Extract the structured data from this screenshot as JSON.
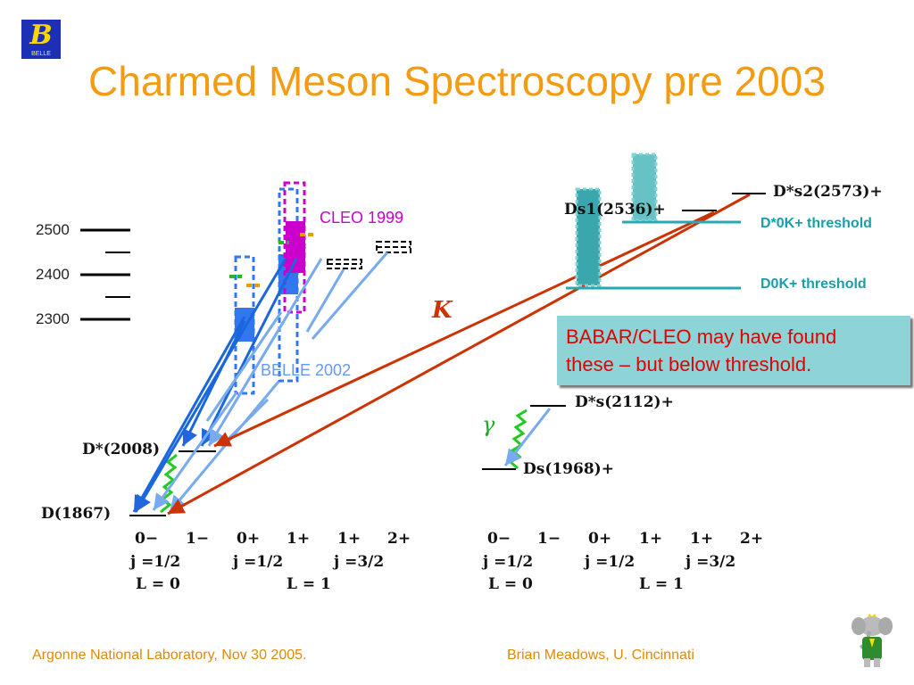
{
  "title": "Charmed Meson Spectroscopy pre 2003",
  "logo_text": "BELLE",
  "mass_ticks": [
    "2500",
    "2400",
    "2300"
  ],
  "experiments": {
    "cleo": "CLEO 1999",
    "belle": "BELLE 2002"
  },
  "d_levels": {
    "d_star": "D*(2008)",
    "d": "D(1867)"
  },
  "ds_levels": {
    "ds2": "D*s2(2573)+",
    "ds1": "Ds1(2536)+",
    "ds_star": "D*s(2112)+",
    "ds": "Ds(1968)+"
  },
  "thresholds": {
    "d_star0_k": "D*0K+ threshold",
    "d0_k": "D0K+ threshold"
  },
  "kaon_label": "K",
  "photon_label": "γ",
  "note": [
    "BABAR/CLEO may have found",
    "these – but below threshold."
  ],
  "quantum_numbers": {
    "jp": [
      "0−",
      "1−",
      "0+",
      "1+",
      "1+",
      "2+"
    ],
    "j_row": [
      "j =1/2",
      "j =1/2",
      "j =3/2"
    ],
    "l_row": [
      "L = 0",
      "L = 1"
    ]
  },
  "colors": {
    "title": "#f39c12",
    "kaon": "#cc3300",
    "cleo": "#cc00cc",
    "belle": "#6699ee",
    "threshold": "#1a9fa8",
    "note_text": "#e00000",
    "photon": "#22aa22"
  },
  "footer": {
    "left": "Argonne National Laboratory, Nov 30 2005.",
    "right": "Brian Meadows, U. Cincinnati"
  },
  "mascot_icon": "babar-elephant-icon"
}
